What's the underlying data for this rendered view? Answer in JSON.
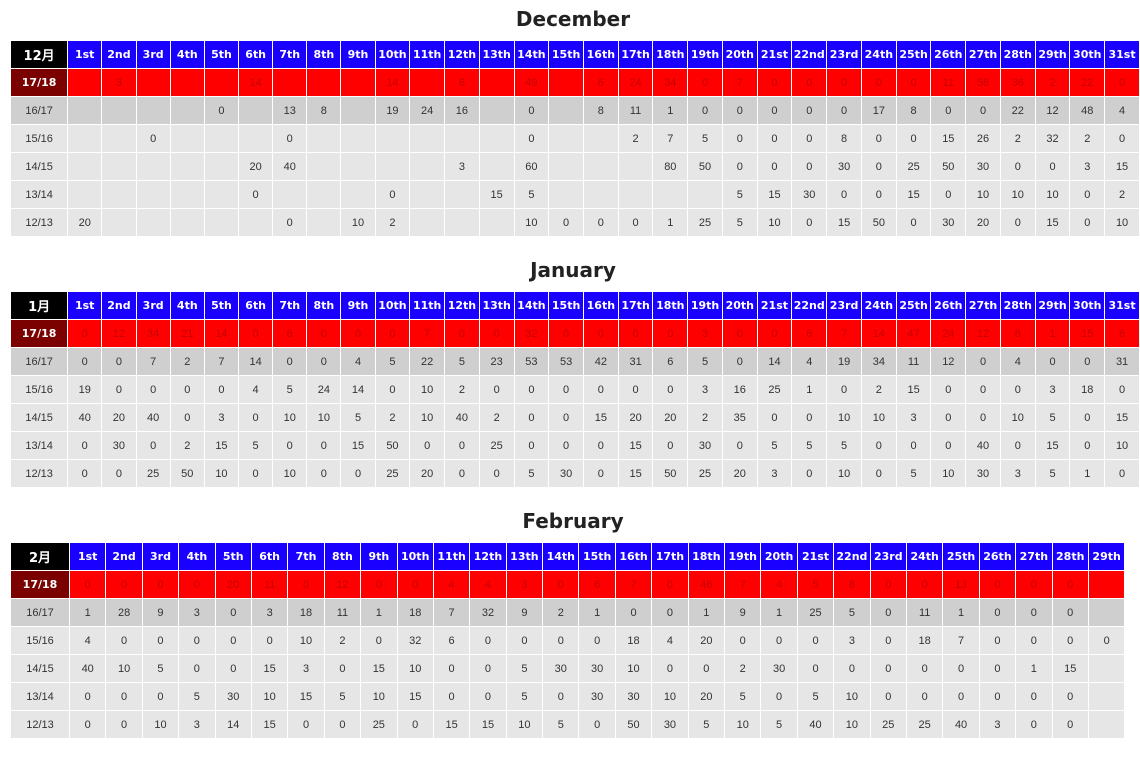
{
  "months": [
    {
      "title": "December",
      "corner": "12月",
      "days": [
        "1st",
        "2nd",
        "3rd",
        "4th",
        "5th",
        "6th",
        "7th",
        "8th",
        "9th",
        "10th",
        "11th",
        "12th",
        "13th",
        "14th",
        "15th",
        "16th",
        "17th",
        "18th",
        "19th",
        "20th",
        "21st",
        "22nd",
        "23rd",
        "24th",
        "25th",
        "26th",
        "27th",
        "28th",
        "29th",
        "30th",
        "31st"
      ],
      "rows": [
        {
          "label": "17/18",
          "values": [
            "",
            "3",
            "",
            "",
            "",
            "14",
            "",
            "",
            "",
            "14",
            "",
            "6",
            "",
            "49",
            "",
            "6",
            "24",
            "34",
            "0",
            "7",
            "0",
            "0",
            "0",
            "0",
            "0",
            "11",
            "58",
            "36",
            "2",
            "22",
            "0"
          ]
        },
        {
          "label": "16/17",
          "values": [
            "",
            "",
            "",
            "",
            "0",
            "",
            "13",
            "8",
            "",
            "19",
            "24",
            "16",
            "",
            "0",
            "",
            "8",
            "11",
            "1",
            "0",
            "0",
            "0",
            "0",
            "0",
            "17",
            "8",
            "0",
            "0",
            "22",
            "12",
            "48",
            "4"
          ]
        },
        {
          "label": "15/16",
          "values": [
            "",
            "",
            "0",
            "",
            "",
            "",
            "0",
            "",
            "",
            "",
            "",
            "",
            "",
            "0",
            "",
            "",
            "2",
            "7",
            "5",
            "0",
            "0",
            "0",
            "8",
            "0",
            "0",
            "15",
            "26",
            "2",
            "32",
            "2",
            "0"
          ]
        },
        {
          "label": "14/15",
          "values": [
            "",
            "",
            "",
            "",
            "",
            "20",
            "40",
            "",
            "",
            "",
            "",
            "3",
            "",
            "60",
            "",
            "",
            "",
            "80",
            "50",
            "0",
            "0",
            "0",
            "30",
            "0",
            "25",
            "50",
            "30",
            "0",
            "0",
            "3",
            "15"
          ]
        },
        {
          "label": "13/14",
          "values": [
            "",
            "",
            "",
            "",
            "",
            "0",
            "",
            "",
            "",
            "0",
            "",
            "",
            "15",
            "5",
            "",
            "",
            "",
            "",
            "",
            "5",
            "15",
            "30",
            "0",
            "0",
            "15",
            "0",
            "10",
            "10",
            "10",
            "0",
            "2"
          ]
        },
        {
          "label": "12/13",
          "values": [
            "20",
            "",
            "",
            "",
            "",
            "",
            "0",
            "",
            "10",
            "2",
            "",
            "",
            "",
            "10",
            "0",
            "0",
            "0",
            "1",
            "25",
            "5",
            "10",
            "0",
            "15",
            "50",
            "0",
            "30",
            "20",
            "0",
            "15",
            "0",
            "10"
          ]
        }
      ]
    },
    {
      "title": "January",
      "corner": "1月",
      "days": [
        "1st",
        "2nd",
        "3rd",
        "4th",
        "5th",
        "6th",
        "7th",
        "8th",
        "9th",
        "10th",
        "11th",
        "12th",
        "13th",
        "14th",
        "15th",
        "16th",
        "17th",
        "18th",
        "19th",
        "20th",
        "21st",
        "22nd",
        "23rd",
        "24th",
        "25th",
        "26th",
        "27th",
        "28th",
        "29th",
        "30th",
        "31st"
      ],
      "rows": [
        {
          "label": "17/18",
          "values": [
            "0",
            "12",
            "34",
            "21",
            "14",
            "0",
            "6",
            "0",
            "0",
            "0",
            "7",
            "0",
            "0",
            "32",
            "0",
            "0",
            "0",
            "0",
            "3",
            "0",
            "0",
            "6",
            "7",
            "14",
            "47",
            "24",
            "12",
            "8",
            "1",
            "15",
            "6"
          ]
        },
        {
          "label": "16/17",
          "values": [
            "0",
            "0",
            "7",
            "2",
            "7",
            "14",
            "0",
            "0",
            "4",
            "5",
            "22",
            "5",
            "23",
            "53",
            "53",
            "42",
            "31",
            "6",
            "5",
            "0",
            "14",
            "4",
            "19",
            "34",
            "11",
            "12",
            "0",
            "4",
            "0",
            "0",
            "31"
          ]
        },
        {
          "label": "15/16",
          "values": [
            "19",
            "0",
            "0",
            "0",
            "0",
            "4",
            "5",
            "24",
            "14",
            "0",
            "10",
            "2",
            "0",
            "0",
            "0",
            "0",
            "0",
            "0",
            "3",
            "16",
            "25",
            "1",
            "0",
            "2",
            "15",
            "0",
            "0",
            "0",
            "3",
            "18",
            "0"
          ]
        },
        {
          "label": "14/15",
          "values": [
            "40",
            "20",
            "40",
            "0",
            "3",
            "0",
            "10",
            "10",
            "5",
            "2",
            "10",
            "40",
            "2",
            "0",
            "0",
            "15",
            "20",
            "20",
            "2",
            "35",
            "0",
            "0",
            "10",
            "10",
            "3",
            "0",
            "0",
            "10",
            "5",
            "0",
            "15"
          ]
        },
        {
          "label": "13/14",
          "values": [
            "0",
            "30",
            "0",
            "2",
            "15",
            "5",
            "0",
            "0",
            "15",
            "50",
            "0",
            "0",
            "25",
            "0",
            "0",
            "0",
            "15",
            "0",
            "30",
            "0",
            "5",
            "5",
            "5",
            "0",
            "0",
            "0",
            "40",
            "0",
            "15",
            "0",
            "10"
          ]
        },
        {
          "label": "12/13",
          "values": [
            "0",
            "0",
            "25",
            "50",
            "10",
            "0",
            "10",
            "0",
            "0",
            "25",
            "20",
            "0",
            "0",
            "5",
            "30",
            "0",
            "15",
            "50",
            "25",
            "20",
            "3",
            "0",
            "10",
            "0",
            "5",
            "10",
            "30",
            "3",
            "5",
            "1",
            "0"
          ]
        }
      ]
    },
    {
      "title": "February",
      "corner": "2月",
      "days": [
        "1st",
        "2nd",
        "3rd",
        "4th",
        "5th",
        "6th",
        "7th",
        "8th",
        "9th",
        "10th",
        "11th",
        "12th",
        "13th",
        "14th",
        "15th",
        "16th",
        "17th",
        "18th",
        "19th",
        "20th",
        "21st",
        "22nd",
        "23rd",
        "24th",
        "25th",
        "26th",
        "27th",
        "28th",
        "29th"
      ],
      "rows": [
        {
          "label": "17/18",
          "values": [
            "0",
            "0",
            "0",
            "0",
            "20",
            "11",
            "0",
            "12",
            "0",
            "0",
            "4",
            "4",
            "3",
            "0",
            "6",
            "7",
            "0",
            "46",
            "7",
            "4",
            "5",
            "8",
            "0",
            "0",
            "13",
            "0",
            "0",
            "0",
            ""
          ]
        },
        {
          "label": "16/17",
          "values": [
            "1",
            "28",
            "9",
            "3",
            "0",
            "3",
            "18",
            "11",
            "1",
            "18",
            "7",
            "32",
            "9",
            "2",
            "1",
            "0",
            "0",
            "1",
            "9",
            "1",
            "25",
            "5",
            "0",
            "11",
            "1",
            "0",
            "0",
            "0",
            ""
          ]
        },
        {
          "label": "15/16",
          "values": [
            "4",
            "0",
            "0",
            "0",
            "0",
            "0",
            "10",
            "2",
            "0",
            "32",
            "6",
            "0",
            "0",
            "0",
            "0",
            "18",
            "4",
            "20",
            "0",
            "0",
            "0",
            "3",
            "0",
            "18",
            "7",
            "0",
            "0",
            "0",
            "0"
          ]
        },
        {
          "label": "14/15",
          "values": [
            "40",
            "10",
            "5",
            "0",
            "0",
            "15",
            "3",
            "0",
            "15",
            "10",
            "0",
            "0",
            "5",
            "30",
            "30",
            "10",
            "0",
            "0",
            "2",
            "30",
            "0",
            "0",
            "0",
            "0",
            "0",
            "0",
            "1",
            "15",
            ""
          ]
        },
        {
          "label": "13/14",
          "values": [
            "0",
            "0",
            "0",
            "5",
            "30",
            "10",
            "15",
            "5",
            "10",
            "15",
            "0",
            "0",
            "5",
            "0",
            "30",
            "30",
            "10",
            "20",
            "5",
            "0",
            "5",
            "10",
            "0",
            "0",
            "0",
            "0",
            "0",
            "0",
            ""
          ]
        },
        {
          "label": "12/13",
          "values": [
            "0",
            "0",
            "10",
            "3",
            "14",
            "15",
            "0",
            "0",
            "25",
            "0",
            "15",
            "15",
            "10",
            "5",
            "0",
            "50",
            "30",
            "5",
            "10",
            "5",
            "40",
            "10",
            "25",
            "25",
            "40",
            "3",
            "0",
            "0",
            ""
          ]
        }
      ]
    }
  ]
}
